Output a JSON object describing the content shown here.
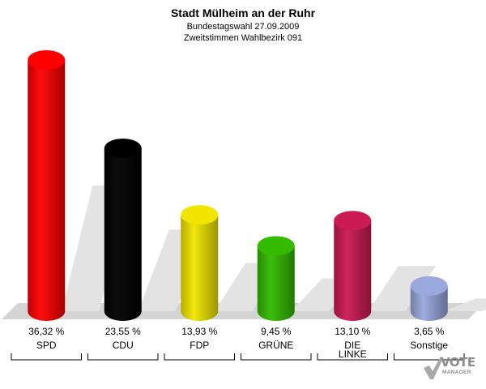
{
  "chart_data": {
    "type": "bar",
    "title": "Stadt Mülheim an der Ruhr",
    "subtitle_lines": [
      "Bundestagswahl 27.09.2009",
      "Zweitstimmen Wahlbezirk 091"
    ],
    "categories": [
      "SPD",
      "CDU",
      "FDP",
      "GRÜNE",
      "DIE LINKE",
      "Sonstige"
    ],
    "values": [
      36.32,
      23.55,
      13.93,
      9.45,
      13.1,
      3.65
    ],
    "value_labels": [
      "36,32 %",
      "23,55 %",
      "13,93 %",
      "9,45 %",
      "13,10 %",
      "3,65 %"
    ],
    "colors": [
      "#ff0000",
      "#000000",
      "#f2e600",
      "#33bb00",
      "#cc1a52",
      "#99a8dd"
    ],
    "ylim": [
      0,
      36.32
    ]
  },
  "logo": {
    "brand": "VOTE",
    "sub": "MANAGER"
  }
}
